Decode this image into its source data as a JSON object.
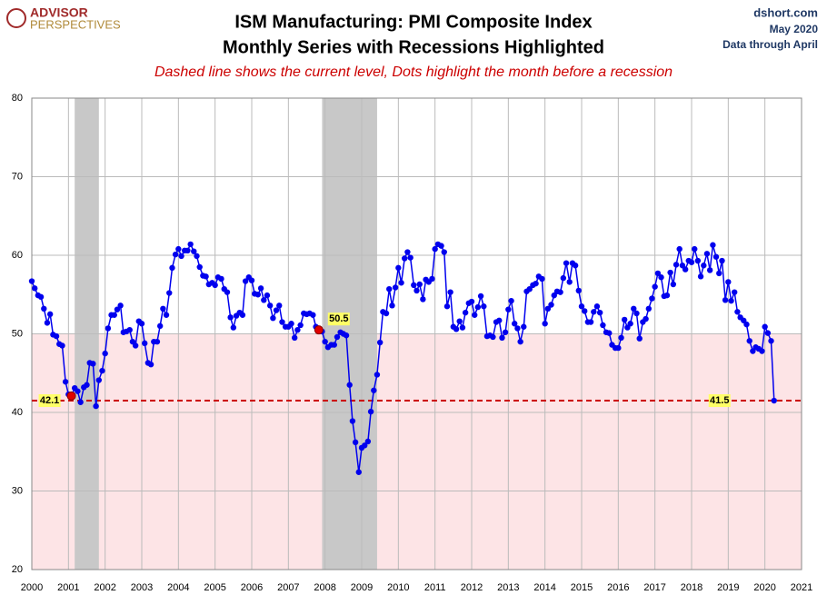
{
  "chart_data": {
    "type": "line",
    "title": "ISM Manufacturing: PMI Composite Index",
    "subtitle": "Monthly Series with Recessions Highlighted",
    "note": "Dashed line shows the current level, Dots highlight the month before a recession",
    "logo": [
      "ADVISOR",
      "PERSPECTIVES"
    ],
    "source": [
      "dshort.com",
      "May 2020",
      "Data through April"
    ],
    "xlim": [
      2000,
      2021
    ],
    "xticks": [
      2000,
      2001,
      2002,
      2003,
      2004,
      2005,
      2006,
      2007,
      2008,
      2009,
      2010,
      2011,
      2012,
      2013,
      2014,
      2015,
      2016,
      2017,
      2018,
      2019,
      2020,
      2021
    ],
    "ylim": [
      20,
      80
    ],
    "yticks": [
      20,
      30,
      40,
      50,
      60,
      70,
      80
    ],
    "grid": true,
    "shade_below": 50,
    "shade_color": "#fde4e6",
    "recessions": [
      [
        2001.17,
        2001.83
      ],
      [
        2007.92,
        2009.42
      ]
    ],
    "recession_color": "#c8c8c8",
    "current_level": 41.5,
    "current_color": "#cc0000",
    "highlights": [
      {
        "x": 2001.08,
        "y": 42.1
      },
      {
        "x": 2007.83,
        "y": 50.5
      }
    ],
    "x": [
      2000,
      2000.08,
      2000.17,
      2000.25,
      2000.33,
      2000.42,
      2000.5,
      2000.58,
      2000.67,
      2000.75,
      2000.83,
      2000.92,
      2001,
      2001.08,
      2001.17,
      2001.25,
      2001.33,
      2001.42,
      2001.5,
      2001.58,
      2001.67,
      2001.75,
      2001.83,
      2001.92,
      2002,
      2002.08,
      2002.17,
      2002.25,
      2002.33,
      2002.42,
      2002.5,
      2002.58,
      2002.67,
      2002.75,
      2002.83,
      2002.92,
      2003,
      2003.08,
      2003.17,
      2003.25,
      2003.33,
      2003.42,
      2003.5,
      2003.58,
      2003.67,
      2003.75,
      2003.83,
      2003.92,
      2004,
      2004.08,
      2004.17,
      2004.25,
      2004.33,
      2004.42,
      2004.5,
      2004.58,
      2004.67,
      2004.75,
      2004.83,
      2004.92,
      2005,
      2005.08,
      2005.17,
      2005.25,
      2005.33,
      2005.42,
      2005.5,
      2005.58,
      2005.67,
      2005.75,
      2005.83,
      2005.92,
      2006,
      2006.08,
      2006.17,
      2006.25,
      2006.33,
      2006.42,
      2006.5,
      2006.58,
      2006.67,
      2006.75,
      2006.83,
      2006.92,
      2007,
      2007.08,
      2007.17,
      2007.25,
      2007.33,
      2007.42,
      2007.5,
      2007.58,
      2007.67,
      2007.75,
      2007.83,
      2007.92,
      2008,
      2008.08,
      2008.17,
      2008.25,
      2008.33,
      2008.42,
      2008.5,
      2008.58,
      2008.67,
      2008.75,
      2008.83,
      2008.92,
      2009,
      2009.08,
      2009.17,
      2009.25,
      2009.33,
      2009.42,
      2009.5,
      2009.58,
      2009.67,
      2009.75,
      2009.83,
      2009.92,
      2010,
      2010.08,
      2010.17,
      2010.25,
      2010.33,
      2010.42,
      2010.5,
      2010.58,
      2010.67,
      2010.75,
      2010.83,
      2010.92,
      2011,
      2011.08,
      2011.17,
      2011.25,
      2011.33,
      2011.42,
      2011.5,
      2011.58,
      2011.67,
      2011.75,
      2011.83,
      2011.92,
      2012,
      2012.08,
      2012.17,
      2012.25,
      2012.33,
      2012.42,
      2012.5,
      2012.58,
      2012.67,
      2012.75,
      2012.83,
      2012.92,
      2013,
      2013.08,
      2013.17,
      2013.25,
      2013.33,
      2013.42,
      2013.5,
      2013.58,
      2013.67,
      2013.75,
      2013.83,
      2013.92,
      2014,
      2014.08,
      2014.17,
      2014.25,
      2014.33,
      2014.42,
      2014.5,
      2014.58,
      2014.67,
      2014.75,
      2014.83,
      2014.92,
      2015,
      2015.08,
      2015.17,
      2015.25,
      2015.33,
      2015.42,
      2015.5,
      2015.58,
      2015.67,
      2015.75,
      2015.83,
      2015.92,
      2016,
      2016.08,
      2016.17,
      2016.25,
      2016.33,
      2016.42,
      2016.5,
      2016.58,
      2016.67,
      2016.75,
      2016.83,
      2016.92,
      2017,
      2017.08,
      2017.17,
      2017.25,
      2017.33,
      2017.42,
      2017.5,
      2017.58,
      2017.67,
      2017.75,
      2017.83,
      2017.92,
      2018,
      2018.08,
      2018.17,
      2018.25,
      2018.33,
      2018.42,
      2018.5,
      2018.58,
      2018.67,
      2018.75,
      2018.83,
      2018.92,
      2019,
      2019.08,
      2019.17,
      2019.25,
      2019.33,
      2019.42,
      2019.5,
      2019.58,
      2019.67,
      2019.75,
      2019.83,
      2019.92,
      2020,
      2020.08,
      2020.17,
      2020.25
    ],
    "series": [
      {
        "name": "PMI Composite Index",
        "color": "#0000ee",
        "values": [
          56.7,
          55.8,
          54.9,
          54.7,
          53.2,
          51.4,
          52.5,
          49.9,
          49.7,
          48.7,
          48.5,
          43.9,
          42.3,
          42.1,
          43.1,
          42.7,
          41.3,
          43.2,
          43.5,
          46.3,
          46.2,
          40.8,
          44.1,
          45.3,
          47.5,
          50.7,
          52.4,
          52.4,
          53.1,
          53.6,
          50.2,
          50.3,
          50.5,
          49.0,
          48.5,
          51.6,
          51.3,
          48.8,
          46.3,
          46.1,
          49.0,
          49.0,
          51.0,
          53.2,
          52.4,
          55.2,
          58.4,
          60.1,
          60.8,
          59.9,
          60.6,
          60.6,
          61.4,
          60.5,
          59.9,
          58.5,
          57.4,
          57.3,
          56.3,
          56.5,
          56.2,
          57.2,
          57.0,
          55.7,
          55.3,
          52.1,
          50.8,
          52.3,
          52.7,
          52.4,
          56.7,
          57.2,
          56.8,
          55.1,
          55.0,
          55.8,
          54.3,
          54.9,
          53.6,
          52.0,
          53.0,
          53.6,
          51.5,
          50.9,
          50.9,
          51.3,
          49.5,
          50.5,
          51.1,
          52.6,
          52.5,
          52.6,
          52.4,
          50.9,
          50.5,
          50.3,
          49.0,
          48.3,
          48.6,
          48.6,
          49.6,
          50.2,
          50.0,
          49.8,
          43.5,
          38.9,
          36.2,
          32.4,
          35.5,
          35.8,
          36.3,
          40.1,
          42.8,
          44.8,
          48.9,
          52.8,
          52.6,
          55.7,
          53.6,
          55.9,
          58.4,
          56.5,
          59.6,
          60.4,
          59.7,
          56.2,
          55.5,
          56.3,
          54.4,
          56.9,
          56.6,
          57.0,
          60.8,
          61.4,
          61.2,
          60.4,
          53.5,
          55.3,
          50.9,
          50.6,
          51.6,
          50.8,
          52.7,
          53.9,
          54.1,
          52.4,
          53.4,
          54.8,
          53.5,
          49.7,
          49.8,
          49.6,
          51.5,
          51.7,
          49.5,
          50.2,
          53.1,
          54.2,
          51.3,
          50.7,
          49.0,
          50.9,
          55.4,
          55.7,
          56.2,
          56.4,
          57.3,
          57.0,
          51.3,
          53.2,
          53.7,
          54.9,
          55.4,
          55.3,
          57.1,
          59.0,
          56.6,
          59.0,
          58.7,
          55.5,
          53.5,
          52.9,
          51.5,
          51.5,
          52.8,
          53.5,
          52.7,
          51.1,
          50.2,
          50.1,
          48.6,
          48.2,
          48.2,
          49.5,
          51.8,
          50.8,
          51.3,
          53.2,
          52.6,
          49.4,
          51.5,
          51.9,
          53.2,
          54.5,
          56.0,
          57.7,
          57.2,
          54.8,
          54.9,
          57.8,
          56.3,
          58.8,
          60.8,
          58.7,
          58.2,
          59.3,
          59.1,
          60.8,
          59.3,
          57.3,
          58.7,
          60.2,
          58.1,
          61.3,
          59.8,
          57.7,
          59.3,
          54.3,
          56.6,
          54.2,
          55.3,
          52.8,
          52.1,
          51.7,
          51.2,
          49.1,
          47.8,
          48.3,
          48.1,
          47.8,
          50.9,
          50.1,
          49.1,
          41.5
        ]
      }
    ]
  }
}
